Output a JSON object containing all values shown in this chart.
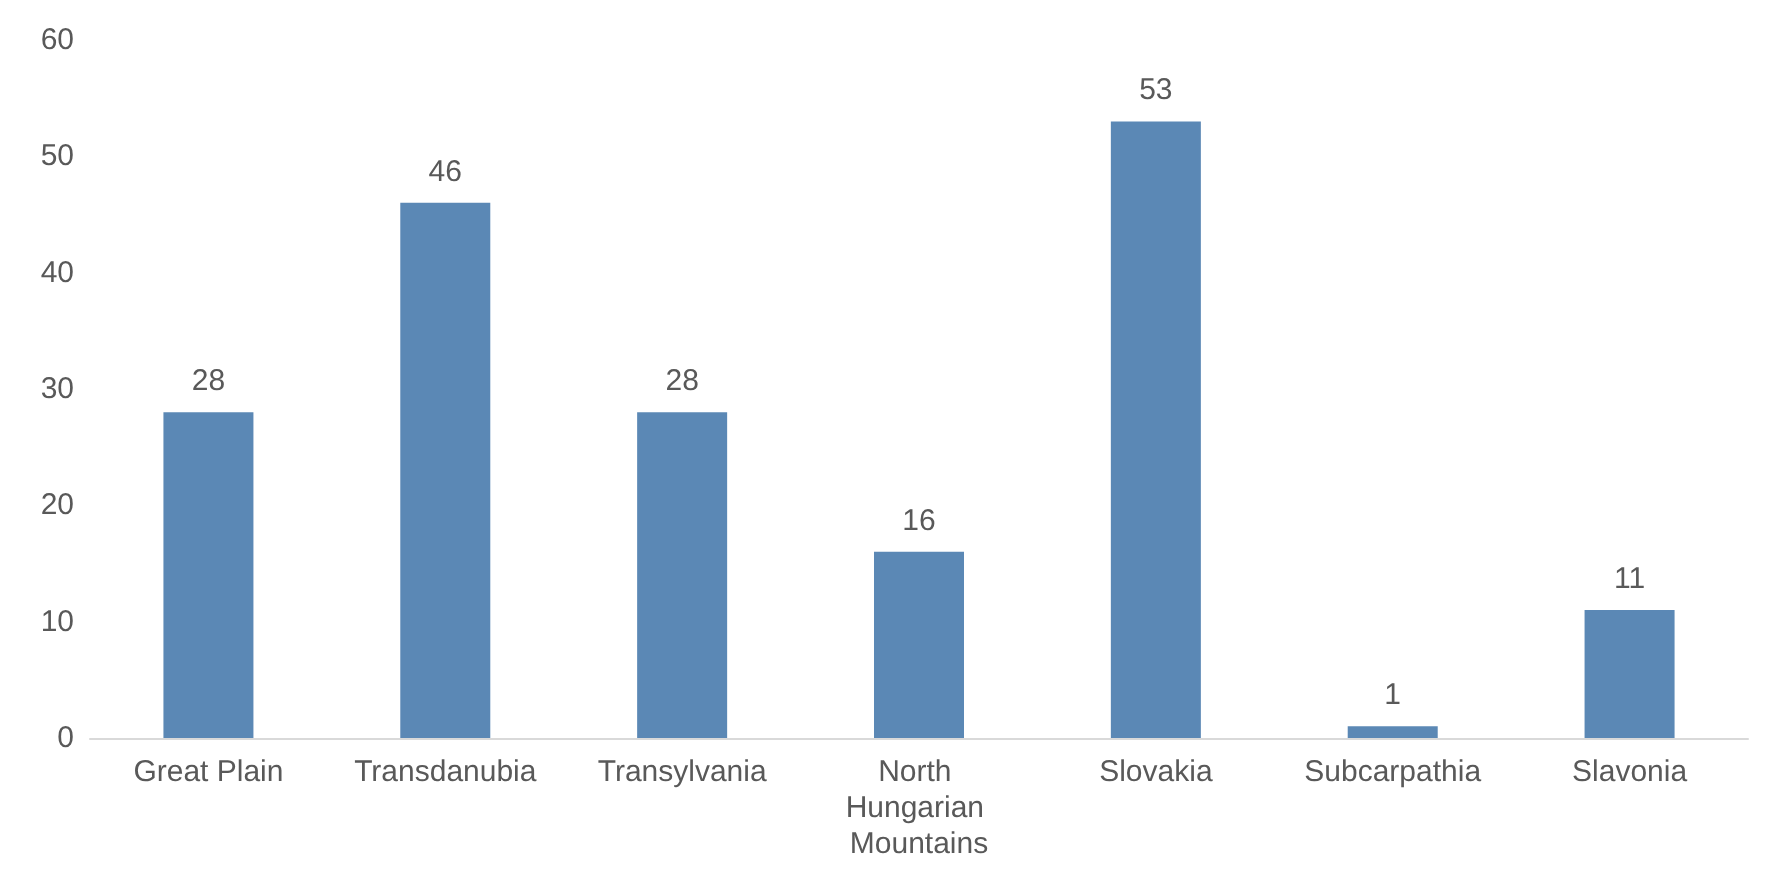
{
  "chart_data": {
    "type": "bar",
    "categories": [
      "Great Plain",
      "Transdanubia",
      "Transylvania",
      "North Hungarian Mountains",
      "Slovakia",
      "Subcarpathia",
      "Slavonia"
    ],
    "values": [
      28,
      46,
      28,
      16,
      53,
      1,
      11
    ],
    "color": "#5b88b5",
    "ylim": [
      0,
      60
    ],
    "yticks": [
      0,
      10,
      20,
      30,
      40,
      50,
      60
    ],
    "grid": false,
    "data_labels": true
  }
}
